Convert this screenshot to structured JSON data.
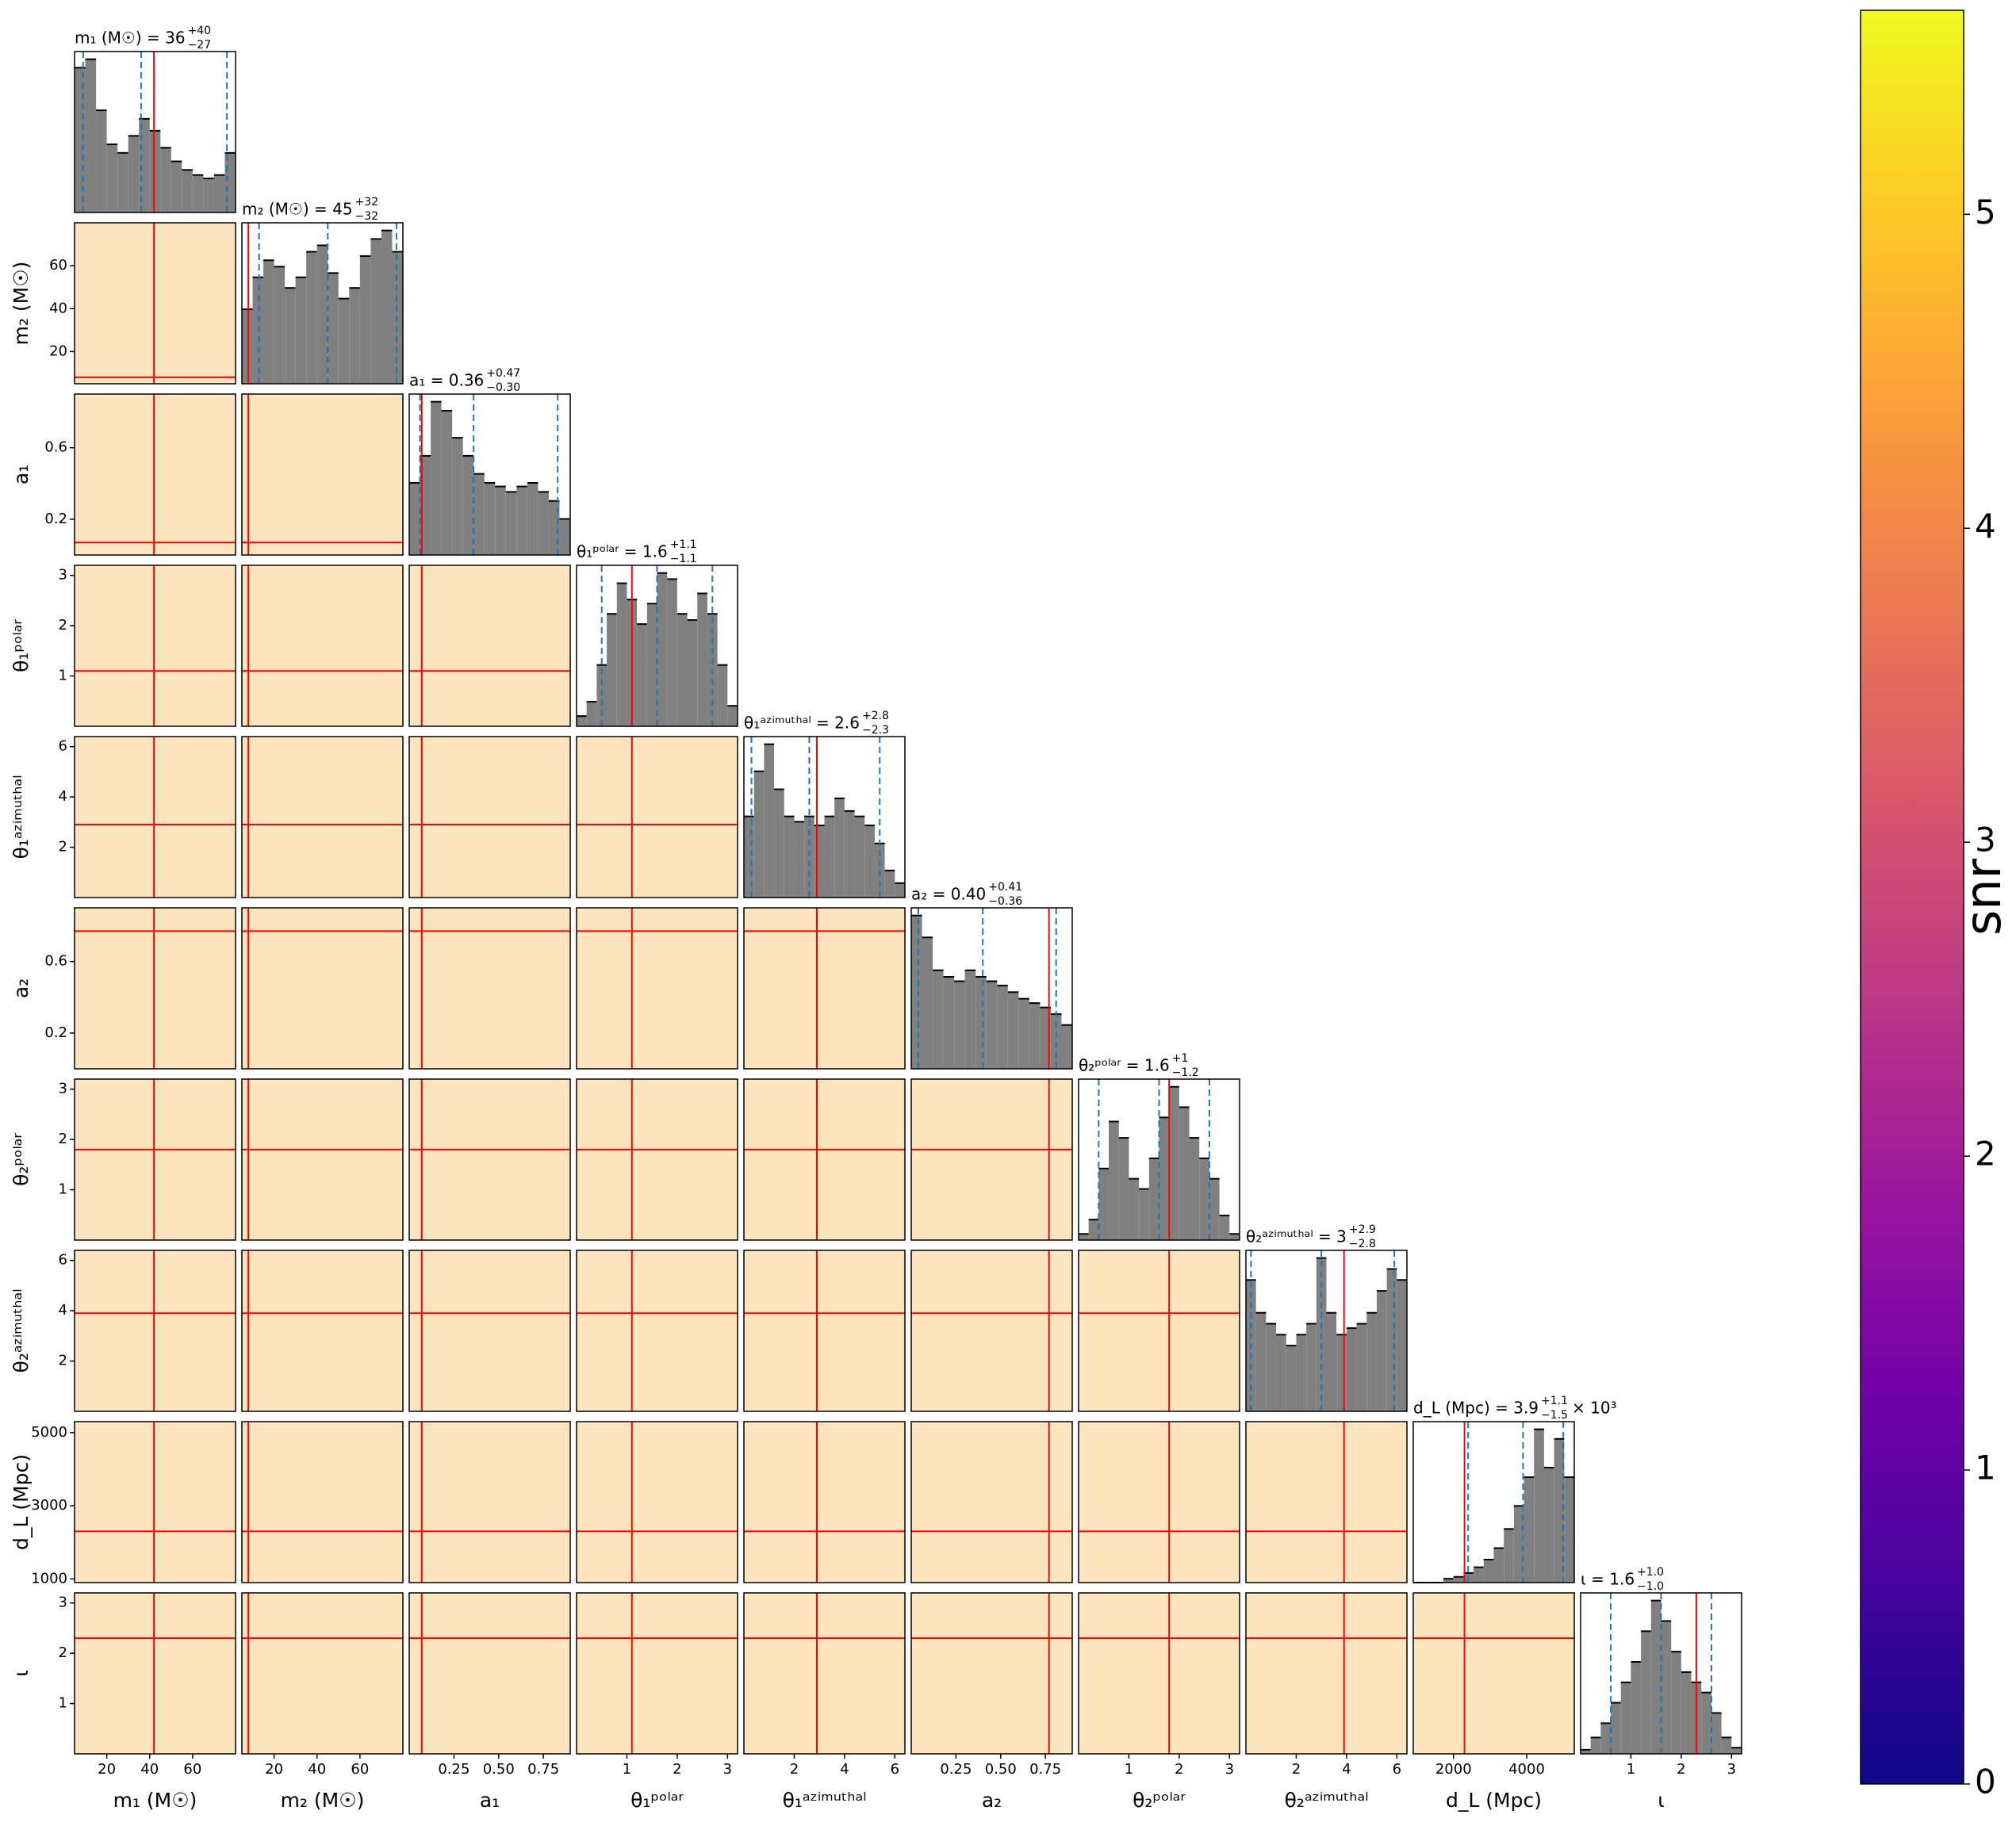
{
  "chart_data": {
    "type": "corner",
    "truth_color": "#ff0000",
    "quantile_color": "#1f77b4",
    "hist_color": "#808080",
    "parameters": [
      {
        "label": "m₁ (M☉)",
        "title": {
          "main": "m₁ (M☉) = 36",
          "upper": "+40",
          "lower": "−27"
        },
        "lim": [
          5,
          80
        ],
        "xticks": [
          20,
          40,
          60
        ],
        "truth": 42,
        "quantiles": [
          9,
          36,
          76
        ],
        "bins": [
          5,
          10,
          15,
          20,
          25,
          30,
          35,
          40,
          45,
          50,
          55,
          60,
          65,
          70,
          75,
          80
        ],
        "counts": [
          85,
          90,
          60,
          40,
          35,
          45,
          55,
          48,
          38,
          30,
          25,
          22,
          20,
          22,
          35
        ]
      },
      {
        "label": "m₂ (M☉)",
        "title": {
          "main": "m₂ (M☉) = 45",
          "upper": "+32",
          "lower": "−32"
        },
        "lim": [
          5,
          80
        ],
        "xticks": [
          20,
          40,
          60
        ],
        "yticks": [
          20,
          40,
          60
        ],
        "truth": 8,
        "quantiles": [
          13,
          45,
          77
        ],
        "bins": [
          5,
          10,
          15,
          20,
          25,
          30,
          35,
          40,
          45,
          50,
          55,
          60,
          65,
          70,
          75,
          80
        ],
        "counts": [
          35,
          50,
          58,
          55,
          45,
          50,
          62,
          65,
          52,
          40,
          45,
          60,
          68,
          72,
          62
        ]
      },
      {
        "label": "a₁",
        "title": {
          "main": "a₁ = 0.36",
          "upper": "+0.47",
          "lower": "−0.30"
        },
        "lim": [
          0,
          0.9
        ],
        "xticks": [
          {
            "value": 0.25,
            "label": "0.25"
          },
          {
            "value": 0.5,
            "label": "0.50"
          },
          {
            "value": 0.75,
            "label": "0.75"
          }
        ],
        "yticks": [
          0.2,
          0.6
        ],
        "truth": 0.07,
        "quantiles": [
          0.06,
          0.36,
          0.83
        ],
        "bins": [
          0,
          0.06,
          0.12,
          0.18,
          0.24,
          0.3,
          0.36,
          0.42,
          0.48,
          0.54,
          0.6,
          0.66,
          0.72,
          0.78,
          0.84,
          0.9
        ],
        "counts": [
          40,
          55,
          85,
          80,
          65,
          55,
          45,
          40,
          38,
          35,
          38,
          40,
          35,
          30,
          20
        ]
      },
      {
        "label": "θ₁ᵖᵒˡᵃʳ",
        "title": {
          "main": "θ₁ᵖᵒˡᵃʳ = 1.6",
          "upper": "+1.1",
          "lower": "−1.1"
        },
        "lim": [
          0,
          3.2
        ],
        "xticks": [
          1,
          2,
          3
        ],
        "yticks": [
          1,
          2,
          3
        ],
        "truth": 1.1,
        "quantiles": [
          0.5,
          1.6,
          2.7
        ],
        "bins": [
          0,
          0.2,
          0.4,
          0.6,
          0.8,
          1,
          1.2,
          1.4,
          1.6,
          1.8,
          2,
          2.2,
          2.4,
          2.6,
          2.8,
          3,
          3.2
        ],
        "counts": [
          5,
          12,
          30,
          55,
          70,
          62,
          50,
          60,
          75,
          72,
          55,
          52,
          65,
          55,
          30,
          10
        ]
      },
      {
        "label": "θ₁ᵃᶻⁱᵐᵘᵗʰᵃˡ",
        "title": {
          "main": "θ₁ᵃᶻⁱᵐᵘᵗʰᵃˡ = 2.6",
          "upper": "+2.8",
          "lower": "−2.3"
        },
        "lim": [
          0,
          6.4
        ],
        "xticks": [
          2,
          4,
          6
        ],
        "yticks": [
          2,
          4,
          6
        ],
        "truth": 2.9,
        "quantiles": [
          0.3,
          2.6,
          5.4
        ],
        "bins": [
          0,
          0.4,
          0.8,
          1.2,
          1.6,
          2,
          2.4,
          2.8,
          3.2,
          3.6,
          4,
          4.4,
          4.8,
          5.2,
          5.6,
          6,
          6.4
        ],
        "counts": [
          45,
          70,
          85,
          60,
          45,
          42,
          45,
          40,
          45,
          55,
          48,
          45,
          40,
          30,
          15,
          8
        ]
      },
      {
        "label": "a₂",
        "title": {
          "main": "a₂ = 0.40",
          "upper": "+0.41",
          "lower": "−0.36"
        },
        "lim": [
          0,
          0.9
        ],
        "xticks": [
          {
            "value": 0.25,
            "label": "0.25"
          },
          {
            "value": 0.5,
            "label": "0.50"
          },
          {
            "value": 0.75,
            "label": "0.75"
          }
        ],
        "yticks": [
          0.2,
          0.6
        ],
        "truth": 0.77,
        "quantiles": [
          0.04,
          0.4,
          0.81
        ],
        "bins": [
          0,
          0.06,
          0.12,
          0.18,
          0.24,
          0.3,
          0.36,
          0.42,
          0.48,
          0.54,
          0.6,
          0.66,
          0.72,
          0.78,
          0.84,
          0.9
        ],
        "counts": [
          70,
          60,
          45,
          42,
          40,
          45,
          42,
          40,
          38,
          35,
          32,
          30,
          28,
          25,
          20
        ]
      },
      {
        "label": "θ₂ᵖᵒˡᵃʳ",
        "title": {
          "main": "θ₂ᵖᵒˡᵃʳ = 1.6",
          "upper": "+1",
          "lower": "−1.2"
        },
        "lim": [
          0,
          3.2
        ],
        "xticks": [
          1,
          2,
          3
        ],
        "yticks": [
          1,
          2,
          3
        ],
        "truth": 1.8,
        "quantiles": [
          0.4,
          1.6,
          2.6
        ],
        "bins": [
          0,
          0.2,
          0.4,
          0.6,
          0.8,
          1,
          1.2,
          1.4,
          1.6,
          1.8,
          2,
          2.2,
          2.4,
          2.6,
          2.8,
          3,
          3.2
        ],
        "counts": [
          3,
          10,
          35,
          58,
          50,
          30,
          25,
          40,
          60,
          75,
          65,
          50,
          40,
          30,
          12,
          3
        ]
      },
      {
        "label": "θ₂ᵃᶻⁱᵐᵘᵗʰᵃˡ",
        "title": {
          "main": "θ₂ᵃᶻⁱᵐᵘᵗʰᵃˡ = 3",
          "upper": "+2.9",
          "lower": "−2.8"
        },
        "lim": [
          0,
          6.4
        ],
        "xticks": [
          2,
          4,
          6
        ],
        "yticks": [
          2,
          4,
          6
        ],
        "truth": 3.9,
        "quantiles": [
          0.2,
          3.0,
          5.9
        ],
        "bins": [
          0,
          0.4,
          0.8,
          1.2,
          1.6,
          2,
          2.4,
          2.8,
          3.2,
          3.6,
          4,
          4.4,
          4.8,
          5.2,
          5.6,
          6,
          6.4
        ],
        "counts": [
          60,
          45,
          40,
          35,
          30,
          35,
          40,
          70,
          45,
          35,
          38,
          40,
          45,
          55,
          65,
          60
        ]
      },
      {
        "label": "d_L (Mpc)",
        "title": {
          "main": "d_L (Mpc) = 3.9",
          "upper": "+1.1",
          "lower": "−1.5",
          "suffix": "× 10³"
        },
        "lim": [
          900,
          5300
        ],
        "xticks": [
          2000,
          4000
        ],
        "yticks": [
          1000,
          3000,
          5000
        ],
        "truth": 2300,
        "quantiles": [
          2400,
          3900,
          5000
        ],
        "bins": [
          900,
          1175,
          1450,
          1725,
          2000,
          2275,
          2550,
          2825,
          3100,
          3375,
          3650,
          3925,
          4200,
          4475,
          4750,
          5025,
          5300
        ],
        "counts": [
          0,
          0,
          0,
          2,
          3,
          5,
          8,
          12,
          18,
          28,
          40,
          55,
          80,
          60,
          75,
          55
        ]
      },
      {
        "label": "ι",
        "title": {
          "main": "ι = 1.6",
          "upper": "+1.0",
          "lower": "−1.0"
        },
        "lim": [
          0,
          3.2
        ],
        "xticks": [
          1,
          2,
          3
        ],
        "yticks": [
          1,
          2,
          3
        ],
        "truth": 2.3,
        "quantiles": [
          0.6,
          1.6,
          2.6
        ],
        "bins": [
          0,
          0.2,
          0.4,
          0.6,
          0.8,
          1,
          1.2,
          1.4,
          1.6,
          1.8,
          2,
          2.2,
          2.4,
          2.6,
          2.8,
          3,
          3.2
        ],
        "counts": [
          2,
          8,
          15,
          25,
          35,
          45,
          60,
          75,
          65,
          50,
          40,
          35,
          30,
          20,
          8,
          3
        ]
      }
    ],
    "colorbar": {
      "label": "snr",
      "lim": [
        0,
        5.65
      ],
      "ticks": [
        0,
        1,
        2,
        3,
        4,
        5
      ],
      "colormap": [
        "#0d0887",
        "#46039f",
        "#7201a8",
        "#9c179e",
        "#bd3786",
        "#d8576b",
        "#ed7953",
        "#fb9f3a",
        "#fdca26",
        "#f0f921"
      ]
    }
  }
}
